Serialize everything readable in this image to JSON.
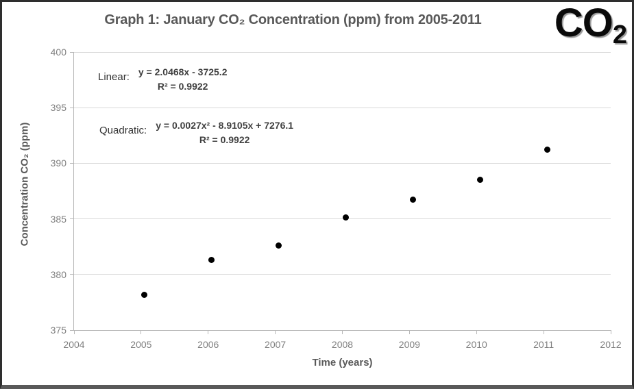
{
  "logo": {
    "text": "CO",
    "subscript": "2"
  },
  "chart_data": {
    "type": "scatter",
    "title": "Graph 1: January CO₂ Concentration (ppm) from 2005-2011",
    "xlabel": "Time (years)",
    "ylabel": "Concentration CO₂ (ppm)",
    "xlim": [
      2004,
      2012
    ],
    "ylim": [
      375,
      400
    ],
    "x_ticks": [
      "2004",
      "2005",
      "2006",
      "2007",
      "2008",
      "2009",
      "2010",
      "2011",
      "2012"
    ],
    "y_ticks": [
      "375",
      "380",
      "385",
      "390",
      "395",
      "400"
    ],
    "grid": "horizontal-only",
    "legend_position": "none",
    "points": [
      {
        "year": "2005",
        "x": 2005.05,
        "y": 378.2
      },
      {
        "year": "2006",
        "x": 2006.05,
        "y": 381.3
      },
      {
        "year": "2007",
        "x": 2007.05,
        "y": 382.6
      },
      {
        "year": "2008",
        "x": 2008.05,
        "y": 385.1
      },
      {
        "year": "2009",
        "x": 2009.05,
        "y": 386.7
      },
      {
        "year": "2010",
        "x": 2010.05,
        "y": 388.5
      },
      {
        "year": "2011",
        "x": 2011.05,
        "y": 391.2
      }
    ],
    "fits": [
      {
        "name": "Linear:",
        "equation": "y = 2.0468x - 3725.2",
        "r2": "R² = 0.9922"
      },
      {
        "name": "Quadratic:",
        "equation": "y = 0.0027x² - 8.9105x + 7276.1",
        "r2": "R² = 0.9922"
      }
    ],
    "colors": {
      "marker": "#000000",
      "title_text": "#595959",
      "tick_label_text": "#7f7f7f",
      "gridline": "#d9d9d9",
      "axis_line": "#b7b7b7",
      "frame_border": "#2e2e2e",
      "frame_border_bottom": "#595959"
    }
  }
}
